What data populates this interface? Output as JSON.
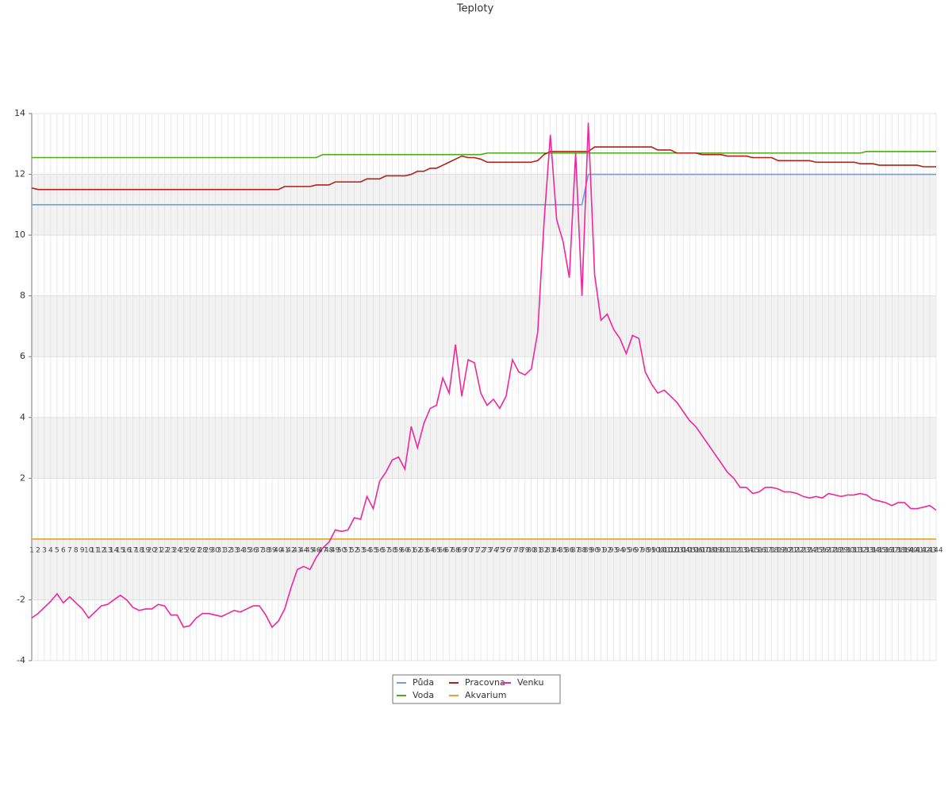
{
  "chart_data": {
    "type": "line",
    "title": "Teploty",
    "categories": [
      1,
      2,
      3,
      4,
      5,
      6,
      7,
      8,
      9,
      10,
      11,
      12,
      13,
      14,
      15,
      16,
      17,
      18,
      19,
      20,
      21,
      22,
      23,
      24,
      25,
      26,
      27,
      28,
      29,
      30,
      31,
      32,
      33,
      34,
      35,
      36,
      37,
      38,
      39,
      40,
      41,
      42,
      43,
      44,
      45,
      46,
      47,
      48,
      49,
      50,
      51,
      52,
      53,
      54,
      55,
      56,
      57,
      58,
      59,
      60,
      61,
      62,
      63,
      64,
      65,
      66,
      67,
      68,
      69,
      70,
      71,
      72,
      73,
      74,
      75,
      76,
      77,
      78,
      79,
      80,
      81,
      82,
      83,
      84,
      85,
      86,
      87,
      88,
      89,
      90,
      91,
      92,
      93,
      94,
      95,
      96,
      97,
      98,
      99,
      100,
      101,
      102,
      103,
      104,
      105,
      106,
      107,
      108,
      109,
      110,
      111,
      112,
      113,
      114,
      115,
      116,
      117,
      118,
      119,
      120,
      121,
      122,
      123,
      124,
      125,
      126,
      127,
      128,
      129,
      130,
      131,
      132,
      133,
      134,
      135,
      136,
      137,
      138,
      139,
      140,
      141,
      142,
      143,
      144
    ],
    "ylim": [
      -4,
      14
    ],
    "yticks": [
      -4,
      -2,
      2,
      4,
      6,
      8,
      10,
      12,
      14
    ],
    "grid": true,
    "series": [
      {
        "name": "Půda",
        "color": "#6f9fdc",
        "values": [
          11,
          11,
          11,
          11,
          11,
          11,
          11,
          11,
          11,
          11,
          11,
          11,
          11,
          11,
          11,
          11,
          11,
          11,
          11,
          11,
          11,
          11,
          11,
          11,
          11,
          11,
          11,
          11,
          11,
          11,
          11,
          11,
          11,
          11,
          11,
          11,
          11,
          11,
          11,
          11,
          11,
          11,
          11,
          11,
          11,
          11,
          11,
          11,
          11,
          11,
          11,
          11,
          11,
          11,
          11,
          11,
          11,
          11,
          11,
          11,
          11,
          11,
          11,
          11,
          11,
          11,
          11,
          11,
          11,
          11,
          11,
          11,
          11,
          11,
          11,
          11,
          11,
          11,
          11,
          11,
          11,
          11,
          11,
          11,
          11,
          11,
          11,
          11,
          12,
          12,
          12,
          12,
          12,
          12,
          12,
          12,
          12,
          12,
          12,
          12,
          12,
          12,
          12,
          12,
          12,
          12,
          12,
          12,
          12,
          12,
          12,
          12,
          12,
          12,
          12,
          12,
          12,
          12,
          12,
          12,
          12,
          12,
          12,
          12,
          12,
          12,
          12,
          12,
          12,
          12,
          12,
          12,
          12,
          12,
          12,
          12,
          12,
          12,
          12,
          12,
          12,
          12,
          12,
          12
        ]
      },
      {
        "name": "Pracovna",
        "color": "#b3201c",
        "values": [
          11.55,
          11.5,
          11.5,
          11.5,
          11.5,
          11.5,
          11.5,
          11.5,
          11.5,
          11.5,
          11.5,
          11.5,
          11.5,
          11.5,
          11.5,
          11.5,
          11.5,
          11.5,
          11.5,
          11.5,
          11.5,
          11.5,
          11.5,
          11.5,
          11.5,
          11.5,
          11.5,
          11.5,
          11.5,
          11.5,
          11.5,
          11.5,
          11.5,
          11.5,
          11.5,
          11.5,
          11.5,
          11.5,
          11.5,
          11.5,
          11.6,
          11.6,
          11.6,
          11.6,
          11.6,
          11.65,
          11.65,
          11.65,
          11.75,
          11.75,
          11.75,
          11.75,
          11.75,
          11.85,
          11.85,
          11.85,
          11.95,
          11.95,
          11.95,
          11.95,
          12.0,
          12.1,
          12.1,
          12.2,
          12.2,
          12.3,
          12.4,
          12.5,
          12.6,
          12.55,
          12.55,
          12.5,
          12.4,
          12.4,
          12.4,
          12.4,
          12.4,
          12.4,
          12.4,
          12.4,
          12.45,
          12.65,
          12.75,
          12.75,
          12.75,
          12.75,
          12.75,
          12.75,
          12.75,
          12.9,
          12.9,
          12.9,
          12.9,
          12.9,
          12.9,
          12.9,
          12.9,
          12.9,
          12.9,
          12.8,
          12.8,
          12.8,
          12.7,
          12.7,
          12.7,
          12.7,
          12.65,
          12.65,
          12.65,
          12.65,
          12.6,
          12.6,
          12.6,
          12.6,
          12.55,
          12.55,
          12.55,
          12.55,
          12.45,
          12.45,
          12.45,
          12.45,
          12.45,
          12.45,
          12.4,
          12.4,
          12.4,
          12.4,
          12.4,
          12.4,
          12.4,
          12.35,
          12.35,
          12.35,
          12.3,
          12.3,
          12.3,
          12.3,
          12.3,
          12.3,
          12.3,
          12.25,
          12.25,
          12.25
        ]
      },
      {
        "name": "Venku",
        "color": "#f0279b",
        "values": [
          -2.6,
          -2.45,
          -2.25,
          -2.05,
          -1.8,
          -2.1,
          -1.9,
          -2.1,
          -2.3,
          -2.6,
          -2.4,
          -2.2,
          -2.15,
          -2.0,
          -1.85,
          -2.0,
          -2.25,
          -2.35,
          -2.3,
          -2.3,
          -2.15,
          -2.2,
          -2.5,
          -2.5,
          -2.9,
          -2.85,
          -2.6,
          -2.45,
          -2.45,
          -2.5,
          -2.55,
          -2.45,
          -2.35,
          -2.4,
          -2.3,
          -2.2,
          -2.2,
          -2.5,
          -2.9,
          -2.7,
          -2.3,
          -1.6,
          -1.0,
          -0.9,
          -1.0,
          -0.6,
          -0.3,
          -0.1,
          0.3,
          0.25,
          0.3,
          0.7,
          0.65,
          1.4,
          1.0,
          1.9,
          2.2,
          2.6,
          2.7,
          2.3,
          3.7,
          3.0,
          3.8,
          4.3,
          4.4,
          5.3,
          4.8,
          6.4,
          4.7,
          5.9,
          5.8,
          4.8,
          4.4,
          4.6,
          4.3,
          4.7,
          5.9,
          5.5,
          5.4,
          5.6,
          6.8,
          10.4,
          13.3,
          10.5,
          9.8,
          8.6,
          12.7,
          8.0,
          13.7,
          8.7,
          7.2,
          7.4,
          6.9,
          6.6,
          6.1,
          6.7,
          6.6,
          5.5,
          5.1,
          4.8,
          4.9,
          4.7,
          4.5,
          4.2,
          3.9,
          3.7,
          3.4,
          3.1,
          2.8,
          2.5,
          2.2,
          2.0,
          1.7,
          1.7,
          1.5,
          1.55,
          1.7,
          1.7,
          1.65,
          1.55,
          1.55,
          1.5,
          1.4,
          1.35,
          1.4,
          1.35,
          1.5,
          1.45,
          1.4,
          1.45,
          1.45,
          1.5,
          1.45,
          1.3,
          1.25,
          1.2,
          1.1,
          1.2,
          1.2,
          1.0,
          1.0,
          1.05,
          1.1,
          0.95
        ]
      },
      {
        "name": "Voda",
        "color": "#4ea91b",
        "values": [
          12.55,
          12.55,
          12.55,
          12.55,
          12.55,
          12.55,
          12.55,
          12.55,
          12.55,
          12.55,
          12.55,
          12.55,
          12.55,
          12.55,
          12.55,
          12.55,
          12.55,
          12.55,
          12.55,
          12.55,
          12.55,
          12.55,
          12.55,
          12.55,
          12.55,
          12.55,
          12.55,
          12.55,
          12.55,
          12.55,
          12.55,
          12.55,
          12.55,
          12.55,
          12.55,
          12.55,
          12.55,
          12.55,
          12.55,
          12.55,
          12.55,
          12.55,
          12.55,
          12.55,
          12.55,
          12.55,
          12.65,
          12.65,
          12.65,
          12.65,
          12.65,
          12.65,
          12.65,
          12.65,
          12.65,
          12.65,
          12.65,
          12.65,
          12.65,
          12.65,
          12.65,
          12.65,
          12.65,
          12.65,
          12.65,
          12.65,
          12.65,
          12.65,
          12.65,
          12.65,
          12.65,
          12.65,
          12.7,
          12.7,
          12.7,
          12.7,
          12.7,
          12.7,
          12.7,
          12.7,
          12.7,
          12.7,
          12.7,
          12.7,
          12.7,
          12.7,
          12.7,
          12.7,
          12.7,
          12.7,
          12.7,
          12.7,
          12.7,
          12.7,
          12.7,
          12.7,
          12.7,
          12.7,
          12.7,
          12.7,
          12.7,
          12.7,
          12.7,
          12.7,
          12.7,
          12.7,
          12.7,
          12.7,
          12.7,
          12.7,
          12.7,
          12.7,
          12.7,
          12.7,
          12.7,
          12.7,
          12.7,
          12.7,
          12.7,
          12.7,
          12.7,
          12.7,
          12.7,
          12.7,
          12.7,
          12.7,
          12.7,
          12.7,
          12.7,
          12.7,
          12.7,
          12.7,
          12.75,
          12.75,
          12.75,
          12.75,
          12.75,
          12.75,
          12.75,
          12.75,
          12.75,
          12.75,
          12.75,
          12.75
        ]
      },
      {
        "name": "Akvarium",
        "color": "#f0a322",
        "values": [
          0,
          0,
          0,
          0,
          0,
          0,
          0,
          0,
          0,
          0,
          0,
          0,
          0,
          0,
          0,
          0,
          0,
          0,
          0,
          0,
          0,
          0,
          0,
          0,
          0,
          0,
          0,
          0,
          0,
          0,
          0,
          0,
          0,
          0,
          0,
          0,
          0,
          0,
          0,
          0,
          0,
          0,
          0,
          0,
          0,
          0,
          0,
          0,
          0,
          0,
          0,
          0,
          0,
          0,
          0,
          0,
          0,
          0,
          0,
          0,
          0,
          0,
          0,
          0,
          0,
          0,
          0,
          0,
          0,
          0,
          0,
          0,
          0,
          0,
          0,
          0,
          0,
          0,
          0,
          0,
          0,
          0,
          0,
          0,
          0,
          0,
          0,
          0,
          0,
          0,
          0,
          0,
          0,
          0,
          0,
          0,
          0,
          0,
          0,
          0,
          0,
          0,
          0,
          0,
          0,
          0,
          0,
          0,
          0,
          0,
          0,
          0,
          0,
          0,
          0,
          0,
          0,
          0,
          0,
          0,
          0,
          0,
          0,
          0,
          0,
          0,
          0,
          0,
          0,
          0,
          0,
          0,
          0,
          0,
          0,
          0,
          0,
          0,
          0,
          0,
          0,
          0,
          0,
          0
        ]
      }
    ]
  }
}
